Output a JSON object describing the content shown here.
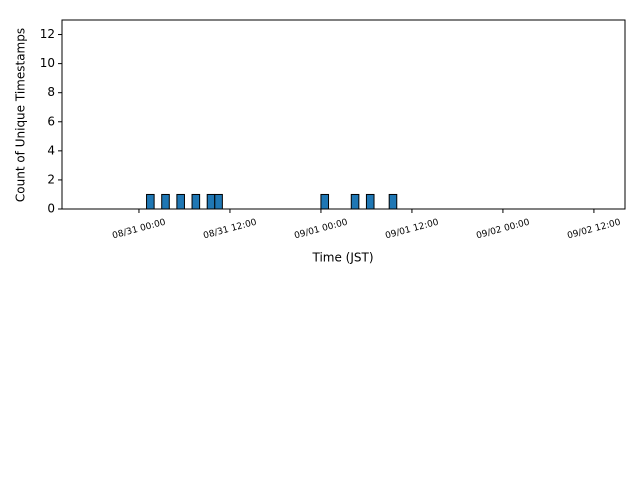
{
  "chart_data": {
    "type": "histogram",
    "xlabel": "Time (JST)",
    "ylabel": "Count of Unique Timestamps",
    "bins": [
      -9,
      -8,
      -7,
      -6,
      -5,
      -4,
      -3,
      -2,
      -1,
      0,
      1,
      2,
      3,
      4,
      5,
      6,
      7,
      8,
      9,
      10,
      11,
      12,
      13,
      14,
      15,
      16,
      17,
      18,
      19,
      20,
      21,
      22,
      23,
      24,
      25,
      26,
      27,
      28,
      29,
      30,
      31,
      32,
      33,
      34,
      35,
      36,
      37,
      38,
      39,
      40,
      41,
      42,
      43,
      44,
      45,
      46,
      47,
      48,
      49,
      50,
      51,
      52,
      53,
      54,
      55,
      56,
      57,
      58,
      59,
      60,
      61,
      62
    ],
    "values": [
      0,
      0,
      0,
      0,
      0,
      0,
      0,
      0,
      0,
      0,
      1,
      0,
      1,
      0,
      1,
      0,
      1,
      0,
      1,
      1,
      0,
      0,
      0,
      0,
      0,
      0,
      0,
      0,
      0,
      0,
      0,
      0,
      0,
      1,
      0,
      0,
      0,
      1,
      0,
      1,
      0,
      0,
      1,
      0,
      0,
      0,
      0,
      0,
      0,
      0,
      0,
      0,
      0,
      0,
      0,
      0,
      0,
      0,
      0,
      0,
      0,
      0,
      0,
      0,
      0,
      0,
      0,
      0,
      0,
      0,
      0
    ],
    "color": "#1f77b4",
    "xlim": [
      -10.15,
      64.1
    ],
    "xticks": [
      {
        "value": 0,
        "label": "08/31 00:00"
      },
      {
        "value": 12,
        "label": "08/31 12:00"
      },
      {
        "value": 24,
        "label": "09/01 00:00"
      },
      {
        "value": 36,
        "label": "09/01 12:00"
      },
      {
        "value": 48,
        "label": "09/02 00:00"
      },
      {
        "value": 60,
        "label": "09/02 12:00"
      }
    ],
    "ylim": [
      0,
      13
    ],
    "yticks": [
      0,
      2,
      4,
      6,
      8,
      10,
      12
    ]
  }
}
